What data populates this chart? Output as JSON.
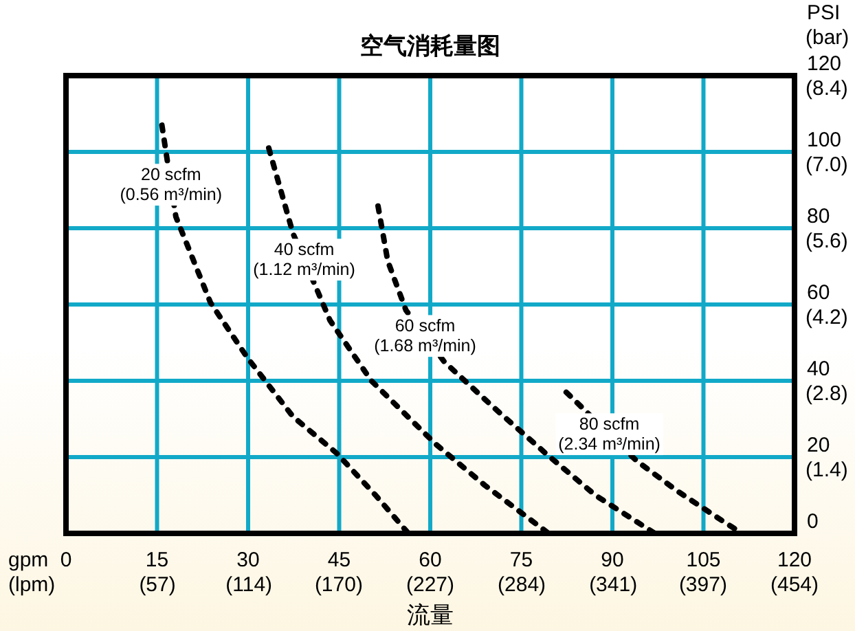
{
  "chart_data": {
    "type": "line",
    "title": "空气消耗量图",
    "xlabel": "流量",
    "x2label": "(lpm)",
    "ylabel": "PSI",
    "y2label": "(bar)",
    "xlim": [
      0,
      120
    ],
    "ylim": [
      0,
      120
    ],
    "x2lim": [
      0,
      454
    ],
    "y2lim": [
      0,
      8.4
    ],
    "xticks": [
      0,
      15,
      30,
      45,
      60,
      75,
      90,
      105,
      120
    ],
    "x2ticks": [
      {
        "value": 57,
        "label": "(57)"
      },
      {
        "value": 114,
        "label": "(114)"
      },
      {
        "value": 170,
        "label": "(170)"
      },
      {
        "value": 227,
        "label": "(227)"
      },
      {
        "value": 284,
        "label": "(284)"
      },
      {
        "value": 341,
        "label": "(341)"
      },
      {
        "value": 397,
        "label": "(397)"
      },
      {
        "value": 454,
        "label": "(454)"
      }
    ],
    "yticks": [
      0,
      20,
      40,
      60,
      80,
      100,
      120
    ],
    "y2ticks": [
      {
        "value": 1.4,
        "label": "(1.4)"
      },
      {
        "value": 2.8,
        "label": "(2.8)"
      },
      {
        "value": 4.2,
        "label": "(4.2)"
      },
      {
        "value": 5.6,
        "label": "(5.6)"
      },
      {
        "value": 7.0,
        "label": "(7.0)"
      },
      {
        "value": 8.4,
        "label": "(8.4)"
      }
    ],
    "grid": true,
    "line_style": "dashed",
    "marker": "none",
    "series": [
      {
        "name": "20 scfm (0.56 m³/min)",
        "color": "#000000",
        "x": [
          15.8,
          18.1,
          23.8,
          29.9,
          37.4,
          44.6,
          51,
          56.4
        ],
        "values": [
          107,
          83,
          60.5,
          46,
          30.6,
          21,
          10,
          0
        ]
      },
      {
        "name": "40 scfm (1.12 m³/min)",
        "color": "#000000",
        "x": [
          33.4,
          37.4,
          43.5,
          50.3,
          60.9,
          69,
          79.5
        ],
        "values": [
          101,
          78.6,
          55.8,
          40,
          23.4,
          12.6,
          0
        ]
      },
      {
        "name": "60 scfm (1.68 m³/min)",
        "color": "#000000",
        "x": [
          51.4,
          53,
          56,
          62.3,
          70.6,
          79,
          87.2,
          97
        ],
        "values": [
          85.8,
          71.4,
          58.5,
          45,
          32.8,
          21,
          10,
          0
        ]
      },
      {
        "name": "80 scfm (2.34 m³/min)",
        "color": "#000000",
        "x": [
          82.4,
          85,
          94,
          100.8,
          108.4,
          111.4
        ],
        "values": [
          37,
          33,
          19,
          11,
          3,
          0
        ]
      }
    ],
    "annotations": [
      "gpm"
    ]
  }
}
